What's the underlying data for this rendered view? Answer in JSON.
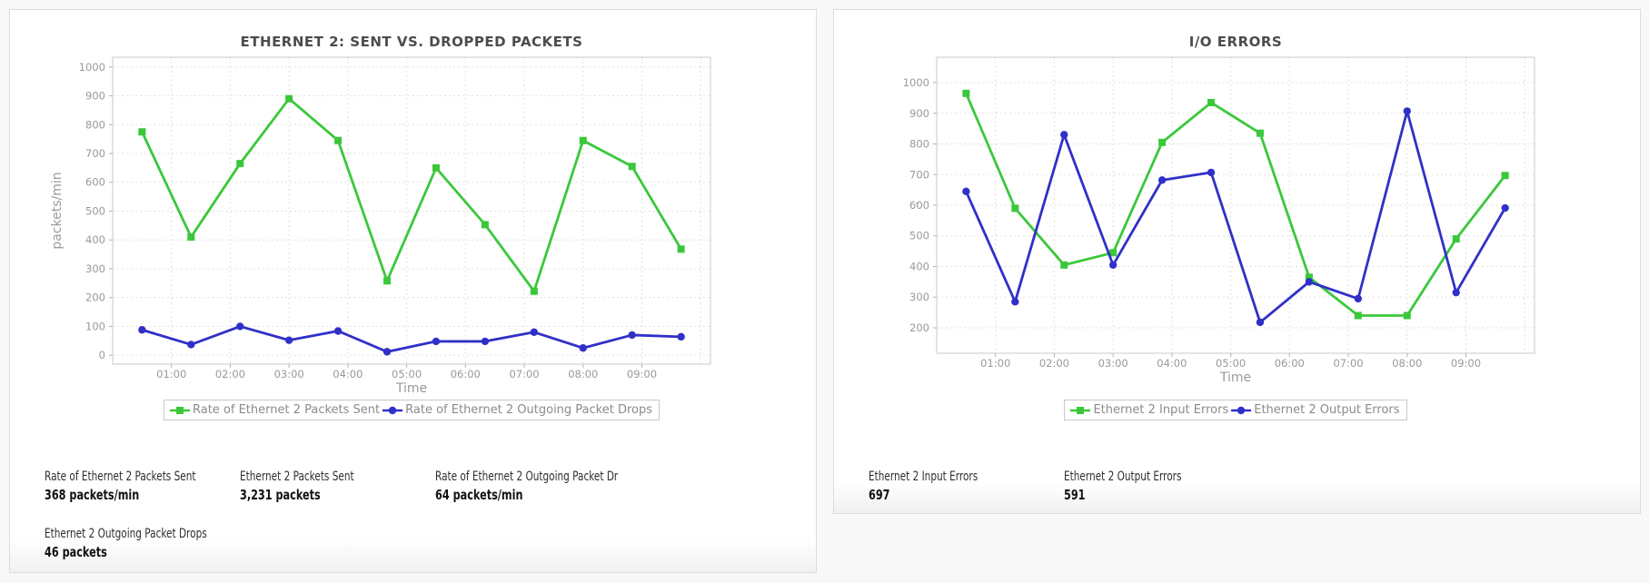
{
  "page": {
    "background": "#f8f8f8",
    "panel_background": "#ffffff",
    "panel_border": "#dcdcdc",
    "grid_color": "#e0e0e0",
    "axis_color": "#c9c9c9",
    "tick_label_color": "#999999",
    "title_color": "#4c4c4c",
    "series_green": "#3ac83a",
    "series_blue": "#3030c8"
  },
  "chart_data": [
    {
      "type": "line",
      "title": "ETHERNET 2: SENT VS. DROPPED PACKETS",
      "xlabel": "Time",
      "ylabel": "packets/min",
      "grid": true,
      "legend_position": "bottom",
      "x_tick_labels": [
        "01:00",
        "02:00",
        "03:00",
        "04:00",
        "05:00",
        "06:00",
        "07:00",
        "08:00",
        "09:00"
      ],
      "x_tick_minutes": [
        60,
        120,
        180,
        240,
        300,
        360,
        420,
        480,
        540
      ],
      "extra_gridline_minutes": [
        600
      ],
      "point_minutes": [
        30,
        80,
        130,
        180,
        230,
        280,
        330,
        380,
        430,
        480,
        530,
        580
      ],
      "x_range": [
        0,
        610
      ],
      "y_ticks": [
        0,
        100,
        200,
        300,
        400,
        500,
        600,
        700,
        800,
        900,
        1000
      ],
      "y_range": [
        -31,
        1034
      ],
      "series": [
        {
          "name": "Rate of Ethernet 2 Packets Sent",
          "color": "#3ac83a",
          "marker": "square",
          "values": [
            775,
            410,
            665,
            890,
            745,
            258,
            650,
            453,
            222,
            745,
            655,
            368
          ]
        },
        {
          "name": "Rate of Ethernet 2 Outgoing Packet Drops",
          "color": "#3030c8",
          "marker": "circle",
          "values": [
            88,
            37,
            100,
            52,
            84,
            12,
            48,
            48,
            80,
            25,
            70,
            64
          ]
        }
      ],
      "stats": [
        {
          "label": "Rate of Ethernet 2 Packets Sent",
          "value": "368 packets/min"
        },
        {
          "label": "Ethernet 2 Packets Sent",
          "value": "3,231 packets"
        },
        {
          "label": "Rate of Ethernet 2 Outgoing Packet Dr",
          "value": "64 packets/min"
        },
        {
          "label": "Ethernet 2 Outgoing Packet Drops",
          "value": "46 packets"
        }
      ]
    },
    {
      "type": "line",
      "title": "I/O ERRORS",
      "xlabel": "Time",
      "ylabel": "'",
      "grid": true,
      "legend_position": "bottom",
      "x_tick_labels": [
        "01:00",
        "02:00",
        "03:00",
        "04:00",
        "05:00",
        "06:00",
        "07:00",
        "08:00",
        "09:00"
      ],
      "x_tick_minutes": [
        60,
        120,
        180,
        240,
        300,
        360,
        420,
        480,
        540
      ],
      "extra_gridline_minutes": [
        600
      ],
      "point_minutes": [
        30,
        80,
        130,
        180,
        230,
        280,
        330,
        380,
        430,
        480,
        530,
        580
      ],
      "x_range": [
        0,
        610
      ],
      "y_ticks": [
        200,
        300,
        400,
        500,
        600,
        700,
        800,
        900,
        1000
      ],
      "y_range": [
        117,
        1083
      ],
      "series": [
        {
          "name": "Ethernet 2 Input Errors",
          "color": "#3ac83a",
          "marker": "square",
          "values": [
            965,
            590,
            405,
            445,
            805,
            935,
            835,
            365,
            240,
            240,
            490,
            697
          ]
        },
        {
          "name": "Ethernet 2 Output Errors",
          "color": "#3030c8",
          "marker": "circle",
          "values": [
            645,
            285,
            830,
            405,
            682,
            707,
            218,
            350,
            295,
            907,
            315,
            591
          ]
        }
      ],
      "stats": [
        {
          "label": "Ethernet 2 Input Errors",
          "value": "697"
        },
        {
          "label": "Ethernet 2 Output Errors",
          "value": "591"
        }
      ]
    }
  ]
}
